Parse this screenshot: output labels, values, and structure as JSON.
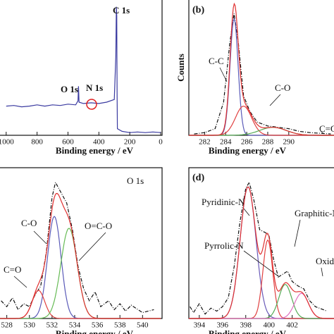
{
  "chart_data": [
    {
      "type": "line",
      "x_label": "Binding energy / eV",
      "xlim": [
        1040,
        0
      ],
      "xticks": [
        1000,
        800,
        600,
        400,
        200,
        0
      ],
      "ylim": [
        0,
        100
      ],
      "annotations": [
        "C 1s",
        "O 1s",
        "N 1s"
      ],
      "series": [
        {
          "color": "#3a3aa0",
          "x": [
            1000,
            950,
            900,
            850,
            800,
            750,
            700,
            650,
            600,
            550,
            535,
            532,
            528,
            500,
            450,
            400,
            350,
            300,
            290,
            287,
            284,
            282,
            280,
            250,
            200,
            150,
            100,
            50,
            0
          ],
          "values": [
            22,
            22.5,
            21.5,
            22,
            23,
            22,
            23,
            22.5,
            23.5,
            23,
            26,
            37,
            25,
            24,
            24.5,
            24,
            25,
            27,
            60,
            97,
            90,
            30,
            5,
            3,
            2,
            2.5,
            2,
            2.5,
            2
          ]
        }
      ]
    },
    {
      "type": "peakfit",
      "panel_label": "(b)",
      "x_label": "Binding energy / eV",
      "y_label": "Counts",
      "xlim": [
        280.5,
        294.3
      ],
      "xticks": [
        282,
        284,
        286,
        288,
        290
      ],
      "ylim": [
        0,
        100
      ],
      "series": [
        {
          "name": "C-C",
          "color": "#5a5ab8",
          "center": 284.8,
          "height": 88,
          "fwhm": 0.9
        },
        {
          "name": "C-O",
          "color": "#e04040",
          "center": 285.7,
          "height": 22,
          "fwhm": 1.8
        },
        {
          "name": "C=O",
          "color": "#55aa55",
          "center": 288.5,
          "height": 6,
          "fwhm": 3
        }
      ],
      "raw": {
        "x": [
          281,
          282,
          283,
          283.8,
          284.4,
          284.8,
          285.2,
          285.7,
          286.3,
          287,
          288,
          289,
          290,
          291,
          292,
          293,
          294
        ],
        "values": [
          1,
          2,
          5,
          25,
          70,
          92,
          70,
          30,
          18,
          10,
          7,
          6,
          5,
          3,
          2,
          1.5,
          1
        ]
      }
    },
    {
      "type": "peakfit",
      "x_label": "Binding energy / eV",
      "title": "O 1s",
      "xlim": [
        527.4,
        541.6
      ],
      "xticks": [
        528,
        530,
        532,
        534,
        536,
        538,
        540
      ],
      "ylim": [
        0,
        100
      ],
      "series": [
        {
          "name": "C-O",
          "color": "#5a5ab8",
          "center": 532.2,
          "height": 69,
          "fwhm": 1.4
        },
        {
          "name": "C=O",
          "color": "#e04040",
          "center": 530.8,
          "height": 19,
          "fwhm": 1.3
        },
        {
          "name": "O=C-O",
          "color": "#66bb55",
          "center": 533.5,
          "height": 61,
          "fwhm": 1.7
        }
      ],
      "raw": {
        "x": [
          527.5,
          528,
          528.5,
          529,
          529.5,
          530,
          530.5,
          531,
          531.5,
          532,
          532.3,
          532.8,
          533.3,
          533.8,
          534.3,
          534.8,
          535.3,
          535.8,
          536.3,
          537,
          537.5,
          538,
          538.5,
          539,
          540,
          541
        ],
        "values": [
          12,
          8,
          14,
          6,
          10,
          8,
          16,
          22,
          45,
          82,
          92,
          85,
          78,
          60,
          35,
          20,
          12,
          18,
          8,
          12,
          6,
          10,
          5,
          9,
          4,
          6
        ]
      }
    },
    {
      "type": "peakfit",
      "panel_label": "(d)",
      "x_label": "Binding energy / eV",
      "xlim": [
        393.1,
        405.6
      ],
      "xticks": [
        394,
        396,
        398,
        400,
        402
      ],
      "ylim": [
        0,
        100
      ],
      "series": [
        {
          "name": "Pyridinic-N",
          "color": "#6a5ab8",
          "center": 398.2,
          "height": 89,
          "fwhm": 1.6
        },
        {
          "name": "Pyrrolic-N",
          "color": "#e04040",
          "center": 399.9,
          "height": 53,
          "fwhm": 1.0
        },
        {
          "name": "Graphitic-N",
          "color": "#55aa55",
          "center": 401.4,
          "height": 23,
          "fwhm": 1.3
        },
        {
          "name": "Oxidized-N",
          "color": "#e070c0",
          "center": 402.8,
          "height": 17,
          "fwhm": 1.4
        }
      ],
      "raw": {
        "x": [
          393.2,
          393.5,
          394,
          394.5,
          395,
          395.5,
          396,
          396.5,
          397,
          397.5,
          398,
          398.3,
          398.7,
          399.2,
          399.7,
          400,
          400.4,
          400.8,
          401.2,
          401.6,
          402,
          402.5,
          403,
          403.5,
          404,
          405
        ],
        "values": [
          8,
          4,
          10,
          3,
          7,
          5,
          8,
          14,
          35,
          65,
          88,
          92,
          80,
          60,
          58,
          56,
          40,
          28,
          30,
          32,
          25,
          22,
          20,
          12,
          8,
          5
        ]
      }
    }
  ]
}
